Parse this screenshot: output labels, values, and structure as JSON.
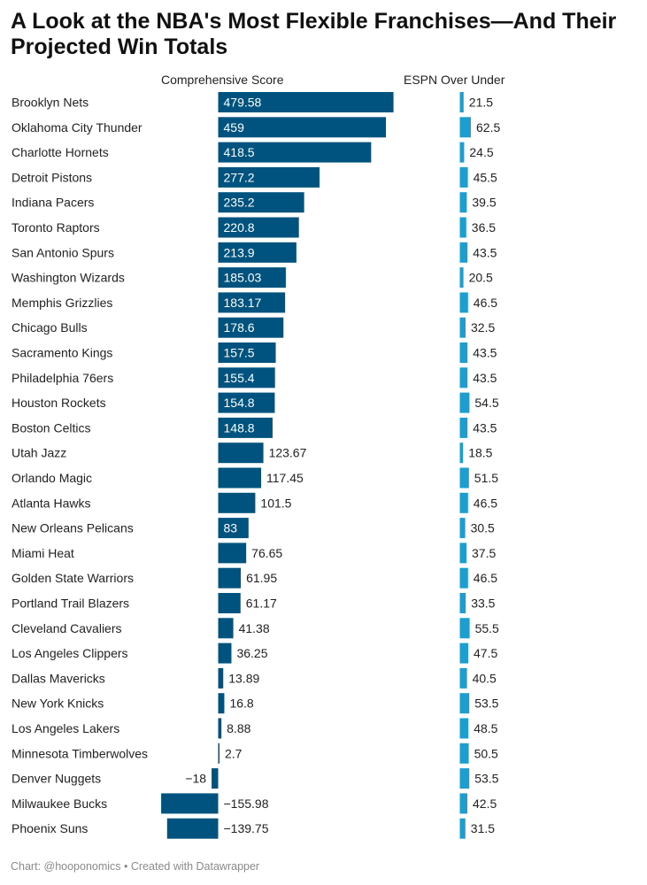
{
  "header": {
    "title": "A Look at the NBA's Most Flexible Franchises—And Their Projected Win Totals"
  },
  "footer": {
    "credit": "Chart: @hooponomics • Created with Datawrapper"
  },
  "colors": {
    "score_bar": "#00537e",
    "ou_bar": "#1c9fd0",
    "text": "#222222",
    "label_inside": "#ffffff"
  },
  "chart_data": {
    "type": "bar",
    "orientation": "horizontal",
    "categories": [
      "Brooklyn Nets",
      "Oklahoma City Thunder",
      "Charlotte Hornets",
      "Detroit Pistons",
      "Indiana Pacers",
      "Toronto Raptors",
      "San Antonio Spurs",
      "Washington Wizards",
      "Memphis Grizzlies",
      "Chicago Bulls",
      "Sacramento Kings",
      "Philadelphia 76ers",
      "Houston Rockets",
      "Boston Celtics",
      "Utah Jazz",
      "Orlando Magic",
      "Atlanta Hawks",
      "New Orleans Pelicans",
      "Miami Heat",
      "Golden State Warriors",
      "Portland Trail Blazers",
      "Cleveland Cavaliers",
      "Los Angeles Clippers",
      "Dallas Mavericks",
      "New York Knicks",
      "Los Angeles Lakers",
      "Minnesota Timberwolves",
      "Denver Nuggets",
      "Milwaukee Bucks",
      "Phoenix Suns"
    ],
    "series": [
      {
        "name": "Comprehensive Score",
        "values": [
          479.58,
          459,
          418.5,
          277.2,
          235.2,
          220.8,
          213.9,
          185.03,
          183.17,
          178.6,
          157.5,
          155.4,
          154.8,
          148.8,
          123.67,
          117.45,
          101.5,
          83,
          76.65,
          61.95,
          61.17,
          41.38,
          36.25,
          13.89,
          16.8,
          8.88,
          2.7,
          -18,
          -155.98,
          -139.75
        ],
        "labels": [
          "479.58",
          "459",
          "418.5",
          "277.2",
          "235.2",
          "220.8",
          "213.9",
          "185.03",
          "183.17",
          "178.6",
          "157.5",
          "155.4",
          "154.8",
          "148.8",
          "123.67",
          "117.45",
          "101.5",
          "83",
          "76.65",
          "61.95",
          "61.17",
          "41.38",
          "36.25",
          "13.89",
          "16.8",
          "8.88",
          "2.7",
          "−18",
          "−155.98",
          "−139.75"
        ],
        "color": "#00537e"
      },
      {
        "name": "ESPN Over Under",
        "values": [
          21.5,
          62.5,
          24.5,
          45.5,
          39.5,
          36.5,
          43.5,
          20.5,
          46.5,
          32.5,
          43.5,
          43.5,
          54.5,
          43.5,
          18.5,
          51.5,
          46.5,
          30.5,
          37.5,
          46.5,
          33.5,
          55.5,
          47.5,
          40.5,
          53.5,
          48.5,
          50.5,
          53.5,
          42.5,
          31.5
        ],
        "labels": [
          "21.5",
          "62.5",
          "24.5",
          "45.5",
          "39.5",
          "36.5",
          "43.5",
          "20.5",
          "46.5",
          "32.5",
          "43.5",
          "43.5",
          "54.5",
          "43.5",
          "18.5",
          "51.5",
          "46.5",
          "30.5",
          "37.5",
          "46.5",
          "33.5",
          "55.5",
          "47.5",
          "40.5",
          "53.5",
          "48.5",
          "50.5",
          "53.5",
          "42.5",
          "31.5"
        ],
        "color": "#1c9fd0"
      }
    ]
  }
}
